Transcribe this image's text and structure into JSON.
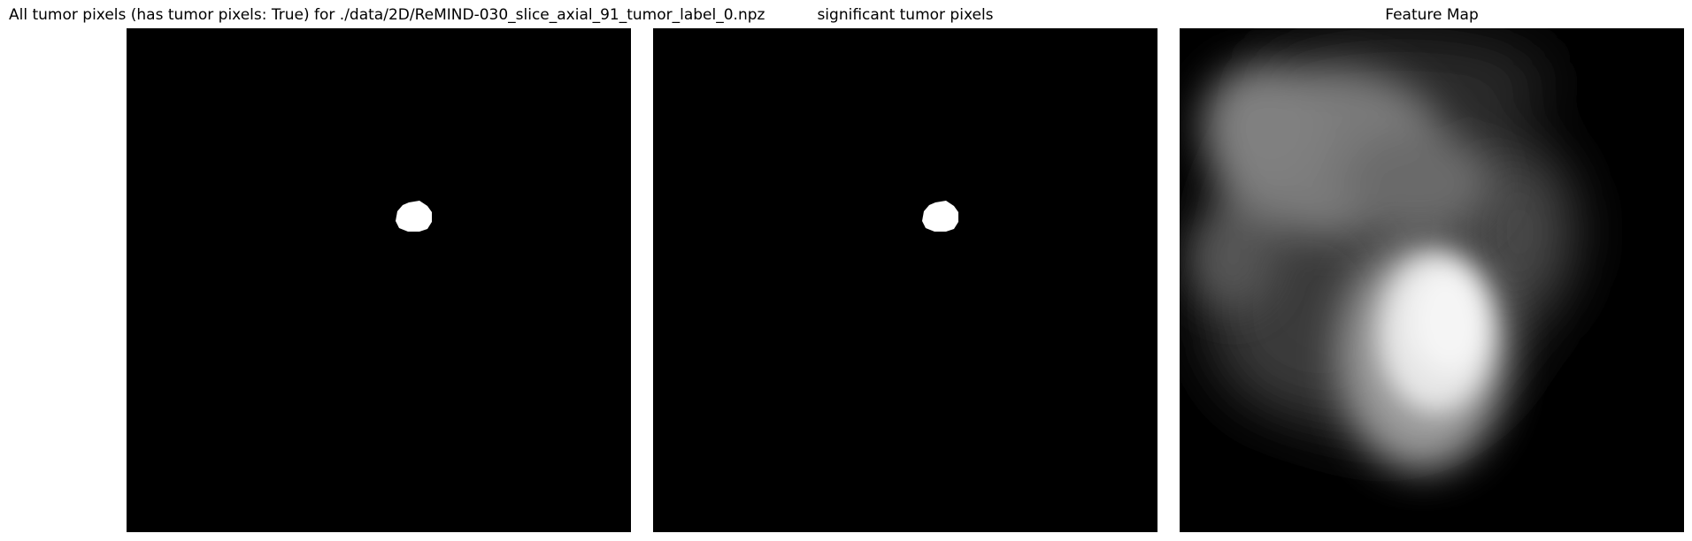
{
  "panels": [
    {
      "title": "All tumor pixels (has tumor pixels: True) for ./data/2D/ReMIND-030_slice_axial_91_tumor_label_0.npz"
    },
    {
      "title": "significant tumor pixels"
    },
    {
      "title": "Feature Map"
    }
  ],
  "colors": {
    "background": "#000000",
    "tumor": "#ffffff"
  }
}
